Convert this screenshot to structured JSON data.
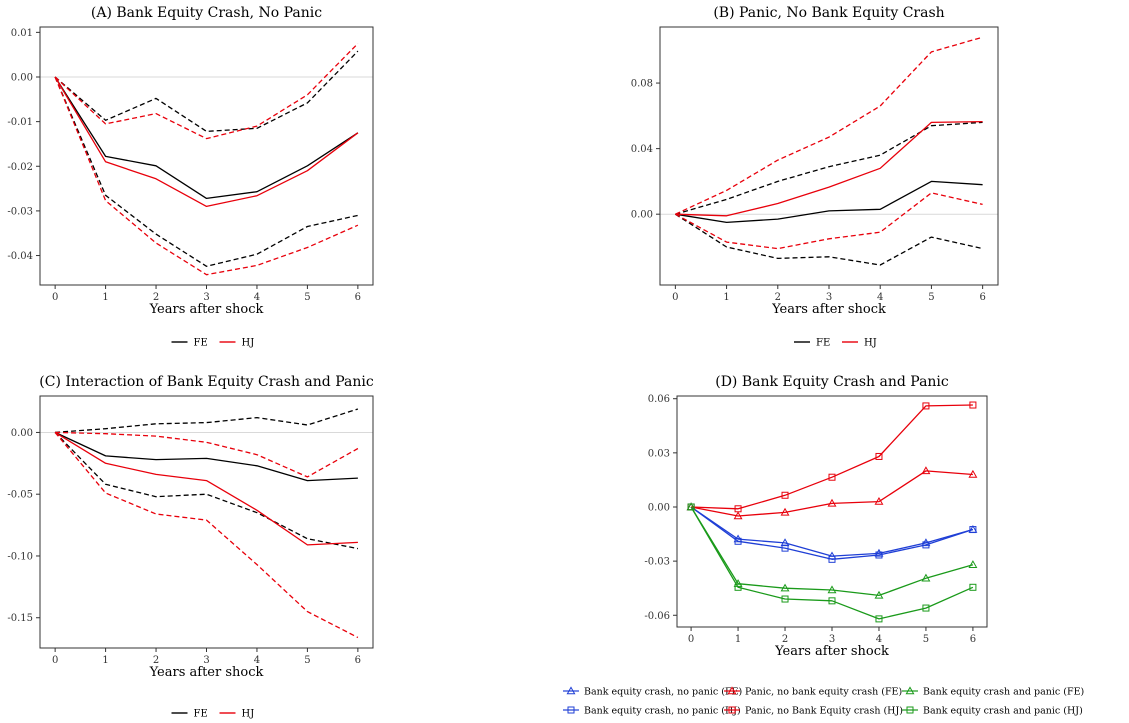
{
  "chart_data": [
    {
      "type": "line",
      "title": "(A) Bank Equity Crash, No Panic",
      "xlabel": "Years after shock",
      "ylabel": "",
      "x": [
        0,
        1,
        2,
        3,
        4,
        5,
        6
      ],
      "xlim": [
        -0.3,
        6.3
      ],
      "ylim": [
        -0.0466,
        0.0112
      ],
      "yticks": [
        0.01,
        0.0,
        -0.01,
        -0.02,
        -0.03,
        -0.04
      ],
      "ytick_labels": [
        "0.01",
        "0.00",
        "-0.01",
        "-0.02",
        "-0.03",
        "-0.04"
      ],
      "zero_line": true,
      "series": [
        {
          "name": "FE",
          "color": "#000000",
          "style": "solid",
          "values": [
            0,
            -0.0178,
            -0.0199,
            -0.0272,
            -0.0257,
            -0.0199,
            -0.0125
          ]
        },
        {
          "name": "FE lower",
          "color": "#000000",
          "style": "dashed",
          "values": [
            0,
            -0.0265,
            -0.0352,
            -0.0424,
            -0.0397,
            -0.0335,
            -0.031
          ]
        },
        {
          "name": "FE upper",
          "color": "#000000",
          "style": "dashed",
          "values": [
            0,
            -0.0097,
            -0.0048,
            -0.0122,
            -0.0115,
            -0.0058,
            0.0058
          ]
        },
        {
          "name": "HJ",
          "color": "#e8000b",
          "style": "solid",
          "values": [
            0,
            -0.019,
            -0.0228,
            -0.029,
            -0.0266,
            -0.021,
            -0.0125
          ]
        },
        {
          "name": "HJ lower",
          "color": "#e8000b",
          "style": "dashed",
          "values": [
            0,
            -0.0277,
            -0.0372,
            -0.0443,
            -0.0422,
            -0.0382,
            -0.0332
          ]
        },
        {
          "name": "HJ upper",
          "color": "#e8000b",
          "style": "dashed",
          "values": [
            0,
            -0.0105,
            -0.0082,
            -0.0138,
            -0.011,
            -0.004,
            0.0075
          ]
        }
      ],
      "legend": {
        "position": "bottom",
        "entries": [
          {
            "label": "FE",
            "color": "#000000"
          },
          {
            "label": "HJ",
            "color": "#e8000b"
          }
        ]
      }
    },
    {
      "type": "line",
      "title": "(B) Panic, No Bank Equity Crash",
      "xlabel": "Years after shock",
      "ylabel": "",
      "x": [
        0,
        1,
        2,
        3,
        4,
        5,
        6
      ],
      "xlim": [
        -0.3,
        6.3
      ],
      "ylim": [
        -0.0432,
        0.1142
      ],
      "yticks": [
        0.08,
        0.04,
        0.0
      ],
      "ytick_labels": [
        "0.08",
        "0.04",
        "0.00"
      ],
      "zero_line": true,
      "series": [
        {
          "name": "FE",
          "color": "#000000",
          "style": "solid",
          "values": [
            0,
            -0.005,
            -0.003,
            0.002,
            0.003,
            0.02,
            0.018
          ]
        },
        {
          "name": "FE lower",
          "color": "#000000",
          "style": "dashed",
          "values": [
            0,
            -0.02,
            -0.027,
            -0.026,
            -0.031,
            -0.014,
            -0.021
          ]
        },
        {
          "name": "FE upper",
          "color": "#000000",
          "style": "dashed",
          "values": [
            0,
            0.009,
            0.02,
            0.029,
            0.036,
            0.054,
            0.056
          ]
        },
        {
          "name": "HJ",
          "color": "#e8000b",
          "style": "solid",
          "values": [
            0,
            -0.001,
            0.0065,
            0.0165,
            0.028,
            0.056,
            0.0565
          ]
        },
        {
          "name": "HJ lower",
          "color": "#e8000b",
          "style": "dashed",
          "values": [
            0,
            -0.017,
            -0.021,
            -0.015,
            -0.011,
            0.013,
            0.006
          ]
        },
        {
          "name": "HJ upper",
          "color": "#e8000b",
          "style": "dashed",
          "values": [
            0,
            0.0145,
            0.033,
            0.047,
            0.066,
            0.099,
            0.108
          ]
        }
      ],
      "legend": {
        "position": "bottom",
        "entries": [
          {
            "label": "FE",
            "color": "#000000"
          },
          {
            "label": "HJ",
            "color": "#e8000b"
          }
        ]
      }
    },
    {
      "type": "line",
      "title": "(C) Interaction of Bank Equity Crash and Panic",
      "xlabel": "Years after shock",
      "ylabel": "",
      "x": [
        0,
        1,
        2,
        3,
        4,
        5,
        6
      ],
      "xlim": [
        -0.3,
        6.3
      ],
      "ylim": [
        -0.1745,
        0.0295
      ],
      "yticks": [
        0.0,
        -0.05,
        -0.1,
        -0.15
      ],
      "ytick_labels": [
        "0.00",
        "-0.05",
        "-0.10",
        "-0.15"
      ],
      "zero_line": true,
      "series": [
        {
          "name": "FE",
          "color": "#000000",
          "style": "solid",
          "values": [
            0,
            -0.019,
            -0.022,
            -0.021,
            -0.027,
            -0.039,
            -0.037
          ]
        },
        {
          "name": "FE lower",
          "color": "#000000",
          "style": "dashed",
          "values": [
            0,
            -0.042,
            -0.052,
            -0.05,
            -0.065,
            -0.086,
            -0.094
          ]
        },
        {
          "name": "FE upper",
          "color": "#000000",
          "style": "dashed",
          "values": [
            0,
            0.003,
            0.007,
            0.008,
            0.012,
            0.006,
            0.019
          ]
        },
        {
          "name": "HJ",
          "color": "#e8000b",
          "style": "solid",
          "values": [
            0,
            -0.025,
            -0.034,
            -0.039,
            -0.063,
            -0.091,
            -0.089
          ]
        },
        {
          "name": "HJ lower",
          "color": "#e8000b",
          "style": "dashed",
          "values": [
            0,
            -0.049,
            -0.066,
            -0.071,
            -0.107,
            -0.145,
            -0.166
          ]
        },
        {
          "name": "HJ upper",
          "color": "#e8000b",
          "style": "dashed",
          "values": [
            0,
            -0.001,
            -0.003,
            -0.008,
            -0.018,
            -0.036,
            -0.013
          ]
        }
      ],
      "legend": {
        "position": "bottom",
        "entries": [
          {
            "label": "FE",
            "color": "#000000"
          },
          {
            "label": "HJ",
            "color": "#e8000b"
          }
        ]
      }
    },
    {
      "type": "line",
      "title": "(D) Bank Equity Crash and Panic",
      "xlabel": "Years after shock",
      "ylabel": "",
      "x": [
        0,
        1,
        2,
        3,
        4,
        5,
        6
      ],
      "xlim": [
        -0.3,
        6.3
      ],
      "ylim": [
        -0.0665,
        0.0615
      ],
      "yticks": [
        0.06,
        0.03,
        0.0,
        -0.03,
        -0.06
      ],
      "ytick_labels": [
        "0.06",
        "0.03",
        "0.00",
        "-0.03",
        "-0.06"
      ],
      "zero_line": false,
      "series": [
        {
          "name": "Bank equity crash, no panic (FE)",
          "color": "#1f3fd6",
          "marker": "triangle",
          "values": [
            0,
            -0.0178,
            -0.0199,
            -0.0272,
            -0.0257,
            -0.0199,
            -0.0125
          ]
        },
        {
          "name": "Bank equity crash, no panic (HJ)",
          "color": "#1f3fd6",
          "marker": "square",
          "values": [
            0,
            -0.019,
            -0.0228,
            -0.029,
            -0.0266,
            -0.021,
            -0.0125
          ]
        },
        {
          "name": "Panic, no bank equity crash (FE)",
          "color": "#e8000b",
          "marker": "triangle",
          "values": [
            0,
            -0.005,
            -0.003,
            0.002,
            0.003,
            0.02,
            0.018
          ]
        },
        {
          "name": "Panic, no Bank Equity crash (HJ)",
          "color": "#e8000b",
          "marker": "square",
          "values": [
            0,
            -0.001,
            0.0065,
            0.0165,
            0.028,
            0.056,
            0.0565
          ]
        },
        {
          "name": "Bank equity crash and panic (FE)",
          "color": "#1a9a1a",
          "marker": "triangle",
          "values": [
            0,
            -0.0425,
            -0.045,
            -0.046,
            -0.049,
            -0.0395,
            -0.032
          ]
        },
        {
          "name": "Bank equity crash and panic (HJ)",
          "color": "#1a9a1a",
          "marker": "square",
          "values": [
            0,
            -0.0445,
            -0.051,
            -0.052,
            -0.062,
            -0.056,
            -0.0445
          ]
        }
      ],
      "legend": {
        "position": "bottom"
      }
    }
  ]
}
